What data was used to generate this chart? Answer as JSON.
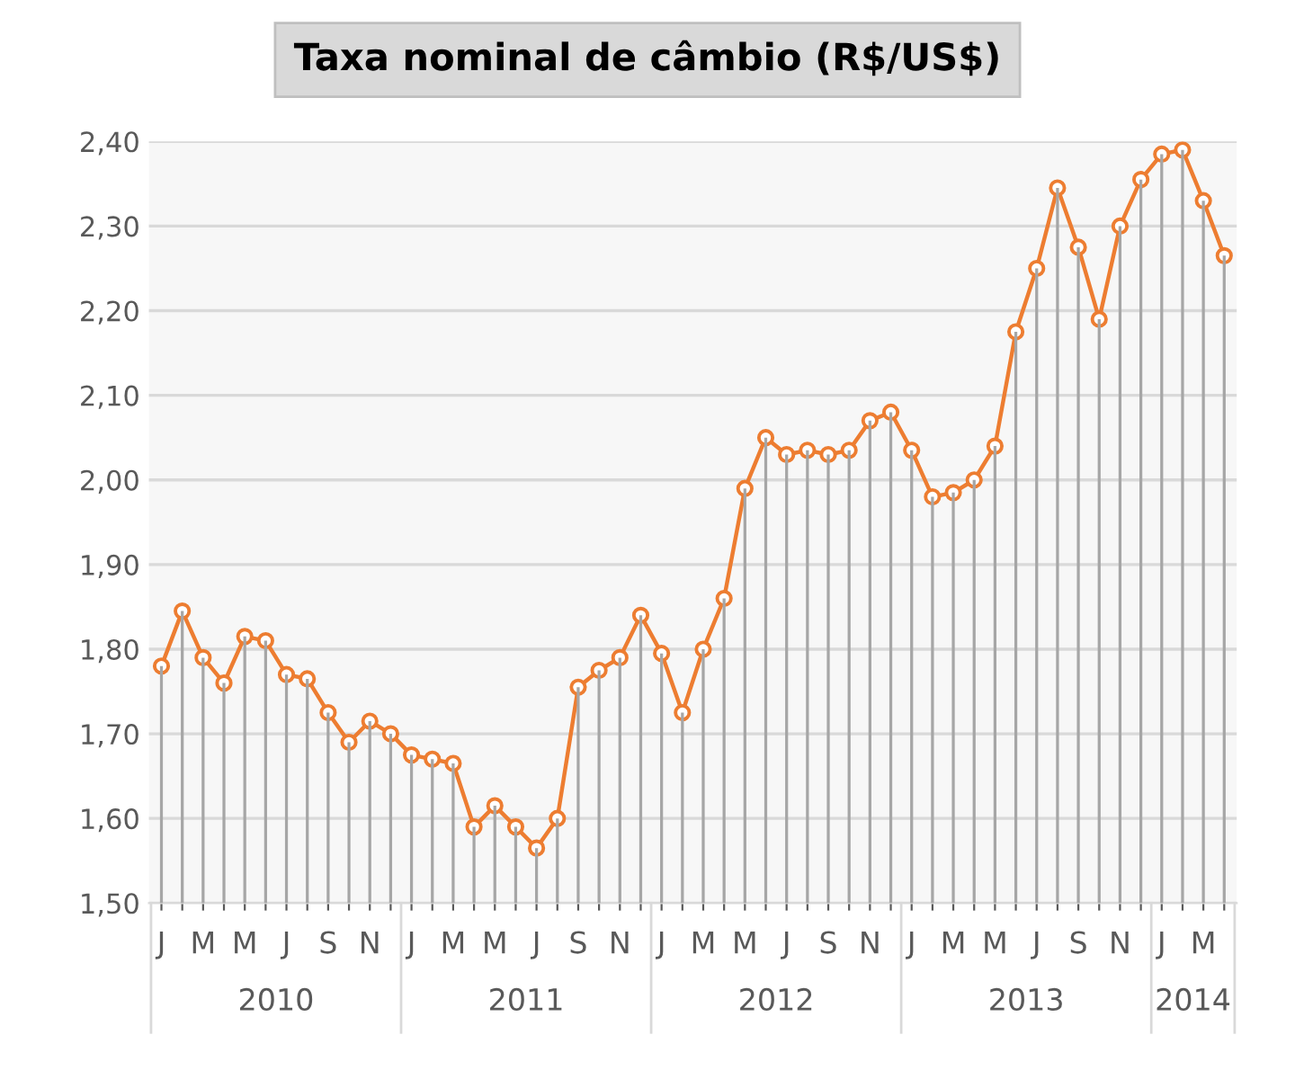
{
  "chart_data": {
    "type": "line",
    "title": "Taxa nominal de câmbio (R$/US$)",
    "categories": [
      "J",
      null,
      "M",
      null,
      "M",
      null,
      "J",
      null,
      "S",
      null,
      "N",
      null,
      "J",
      null,
      "M",
      null,
      "M",
      null,
      "J",
      null,
      "S",
      null,
      "N",
      null,
      "J",
      null,
      "M",
      null,
      "M",
      null,
      "J",
      null,
      "S",
      null,
      "N",
      null,
      "J",
      null,
      "M",
      null,
      "M",
      null,
      "J",
      null,
      "S",
      null,
      "N",
      null,
      "J",
      null,
      "M",
      null
    ],
    "series": [
      {
        "type": "bar",
        "color": "#a6a6a6",
        "values": [
          1.78,
          1.845,
          1.79,
          1.76,
          1.815,
          1.81,
          1.77,
          1.765,
          1.725,
          1.69,
          1.715,
          1.7,
          1.675,
          1.67,
          1.665,
          1.59,
          1.615,
          1.59,
          1.565,
          1.6,
          1.755,
          1.775,
          1.79,
          1.84,
          1.795,
          1.725,
          1.8,
          1.86,
          1.99,
          2.05,
          2.03,
          2.035,
          2.03,
          2.035,
          2.07,
          2.08,
          2.035,
          1.98,
          1.985,
          2.0,
          2.04,
          2.175,
          2.25,
          2.345,
          2.275,
          2.19,
          2.3,
          2.355,
          2.385,
          2.39,
          2.33,
          2.265
        ]
      },
      {
        "color": "#ed7d31",
        "values": [
          1.78,
          1.845,
          1.79,
          1.76,
          1.815,
          1.81,
          1.77,
          1.765,
          1.725,
          1.69,
          1.715,
          1.7,
          1.675,
          1.67,
          1.665,
          1.59,
          1.615,
          1.59,
          1.565,
          1.6,
          1.755,
          1.775,
          1.79,
          1.84,
          1.795,
          1.725,
          1.8,
          1.86,
          1.99,
          2.05,
          2.03,
          2.035,
          2.03,
          2.035,
          2.07,
          2.08,
          2.035,
          1.98,
          1.985,
          2.0,
          2.04,
          2.175,
          2.25,
          2.345,
          2.275,
          2.19,
          2.3,
          2.355,
          2.385,
          2.39,
          2.33,
          2.265
        ]
      }
    ],
    "ylim": [
      1.5,
      2.4
    ],
    "yticks": [
      {
        "value": 1.5,
        "label": "1,50"
      },
      {
        "value": 1.6,
        "label": "1,60"
      },
      {
        "value": 1.7,
        "label": "1,70"
      },
      {
        "value": 1.8,
        "label": "1,80"
      },
      {
        "value": 1.9,
        "label": "1,90"
      },
      {
        "value": 2.0,
        "label": "2,00"
      },
      {
        "value": 2.1,
        "label": "2,10"
      },
      {
        "value": 2.2,
        "label": "2,20"
      },
      {
        "value": 2.3,
        "label": "2,30"
      },
      {
        "value": 2.4,
        "label": "2,40"
      }
    ],
    "annotations": [
      "2010",
      "2011",
      "2012",
      "2013",
      "2014"
    ],
    "grid": "y",
    "marker": "circle",
    "line_style": "solid",
    "legend": false
  }
}
